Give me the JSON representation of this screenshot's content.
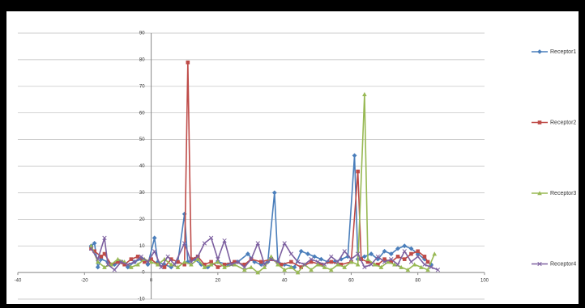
{
  "chart_data": {
    "type": "line",
    "legend": "right",
    "grid": true,
    "xlim": [
      -40,
      100
    ],
    "xticks": [
      -40,
      -20,
      0,
      20,
      40,
      60,
      80,
      100
    ],
    "ylim": [
      -10,
      90
    ],
    "yticks": [
      -10,
      0,
      10,
      20,
      30,
      40,
      50,
      60,
      70,
      80,
      90
    ],
    "series": [
      {
        "name": "Receptor1",
        "color": "#4a7ebb",
        "marker": "diamond",
        "x": [
          -18,
          -17,
          -16,
          -15,
          -13,
          -11,
          -9,
          -7,
          -5,
          -3,
          -1,
          1,
          2,
          4,
          6,
          8,
          10,
          11,
          13,
          15,
          17,
          20,
          23,
          26,
          29,
          31,
          33,
          35,
          37,
          38,
          40,
          43,
          45,
          47,
          49,
          51,
          53,
          55,
          57,
          59,
          61,
          62,
          64,
          66,
          68,
          70,
          72,
          74,
          76,
          78,
          80,
          82,
          84
        ],
        "values": [
          10,
          11,
          2,
          5,
          4,
          3,
          4,
          2,
          4,
          5,
          3,
          13,
          4,
          3,
          2,
          4,
          22,
          4,
          5,
          3,
          2,
          4,
          3,
          4,
          7,
          4,
          3,
          4,
          30,
          4,
          3,
          2,
          8,
          7,
          6,
          5,
          4,
          4,
          5,
          6,
          44,
          5,
          6,
          7,
          5,
          8,
          7,
          9,
          10,
          9,
          7,
          5,
          3
        ]
      },
      {
        "name": "Receptor2",
        "color": "#be4b48",
        "marker": "square",
        "x": [
          -18,
          -17,
          -15,
          -14,
          -12,
          -10,
          -8,
          -6,
          -4,
          -2,
          0,
          2,
          4,
          6,
          8,
          10,
          11,
          12,
          14,
          16,
          18,
          20,
          22,
          25,
          28,
          30,
          33,
          36,
          39,
          42,
          45,
          48,
          51,
          54,
          57,
          60,
          62,
          63,
          65,
          68,
          70,
          72,
          74,
          76,
          78,
          80,
          82,
          83
        ],
        "values": [
          9,
          8,
          6,
          7,
          3,
          4,
          3,
          5,
          6,
          4,
          5,
          3,
          2,
          5,
          4,
          3,
          79,
          5,
          6,
          3,
          4,
          2,
          3,
          4,
          3,
          5,
          4,
          5,
          3,
          4,
          2,
          4,
          3,
          4,
          3,
          4,
          38,
          5,
          4,
          3,
          5,
          4,
          6,
          5,
          7,
          8,
          6,
          4
        ]
      },
      {
        "name": "Receptor3",
        "color": "#98b954",
        "marker": "triangle",
        "x": [
          -18,
          -16,
          -14,
          -12,
          -10,
          -8,
          -6,
          -4,
          -2,
          0,
          2,
          4,
          6,
          8,
          10,
          12,
          14,
          16,
          18,
          20,
          22,
          25,
          28,
          30,
          32,
          34,
          36,
          38,
          40,
          42,
          44,
          46,
          48,
          50,
          52,
          54,
          56,
          58,
          60,
          62,
          64,
          65,
          67,
          69,
          71,
          73,
          75,
          77,
          79,
          81,
          83,
          85
        ],
        "values": [
          10,
          4,
          2,
          3,
          5,
          4,
          2,
          3,
          5,
          4,
          3,
          5,
          3,
          2,
          4,
          3,
          5,
          2,
          3,
          4,
          2,
          3,
          1,
          2,
          0,
          2,
          6,
          3,
          1,
          2,
          0,
          3,
          1,
          3,
          2,
          1,
          3,
          2,
          4,
          3,
          67,
          5,
          3,
          2,
          4,
          3,
          2,
          1,
          3,
          2,
          1,
          7
        ]
      },
      {
        "name": "Receptor4",
        "color": "#7d60a0",
        "marker": "x",
        "x": [
          -18,
          -16,
          -14,
          -13,
          -11,
          -9,
          -7,
          -5,
          -3,
          -1,
          1,
          3,
          5,
          7,
          10,
          12,
          14,
          16,
          18,
          20,
          22,
          24,
          26,
          28,
          30,
          32,
          34,
          36,
          38,
          40,
          42,
          44,
          46,
          48,
          50,
          52,
          54,
          56,
          58,
          60,
          62,
          64,
          66,
          68,
          70,
          72,
          74,
          76,
          78,
          80,
          82,
          84,
          86
        ],
        "values": [
          9,
          5,
          13,
          3,
          1,
          4,
          3,
          4,
          6,
          4,
          8,
          2,
          6,
          3,
          11,
          4,
          6,
          11,
          13,
          5,
          12,
          3,
          4,
          2,
          5,
          11,
          3,
          5,
          4,
          11,
          7,
          4,
          3,
          5,
          4,
          3,
          6,
          4,
          8,
          5,
          7,
          2,
          3,
          6,
          4,
          5,
          3,
          8,
          4,
          6,
          3,
          2,
          1
        ]
      }
    ]
  }
}
